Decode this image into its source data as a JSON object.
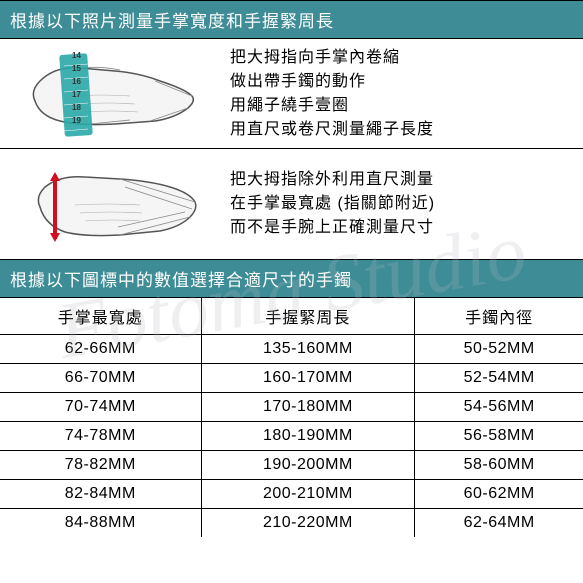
{
  "watermark": "Fotoma Studio",
  "header1": "根據以下照片測量手掌寬度和手握緊周長",
  "instruction1": {
    "lines": [
      "把大拇指向手掌內卷縮",
      "做出帶手鐲的動作",
      "用繩子繞手壹圈",
      "用直尺或卷尺測量繩子長度"
    ]
  },
  "instruction2": {
    "lines": [
      "把大拇指除外利用直尺測量",
      "在手掌最寬處 (指關節附近)",
      "而不是手腕上正確測量尺寸"
    ]
  },
  "header2": "根據以下圖標中的數值選擇合適尺寸的手鐲",
  "table": {
    "columns": [
      "手掌最寬處",
      "手握緊周長",
      "手鐲內徑"
    ],
    "rows": [
      [
        "62-66MM",
        "135-160MM",
        "50-52MM"
      ],
      [
        "66-70MM",
        "160-170MM",
        "52-54MM"
      ],
      [
        "70-74MM",
        "170-180MM",
        "54-56MM"
      ],
      [
        "74-78MM",
        "180-190MM",
        "56-58MM"
      ],
      [
        "78-82MM",
        "190-200MM",
        "58-60MM"
      ],
      [
        "82-84MM",
        "200-210MM",
        "60-62MM"
      ],
      [
        "84-88MM",
        "210-220MM",
        "62-64MM"
      ]
    ]
  },
  "tape": {
    "marks": [
      "14",
      "15",
      "16",
      "17",
      "18",
      "19"
    ]
  },
  "colors": {
    "header_bg": "#3e8d96",
    "tape": "#2aa8a8",
    "ruler": "#d01020",
    "hand_fill": "#f5f5f5",
    "hand_stroke": "#444"
  }
}
